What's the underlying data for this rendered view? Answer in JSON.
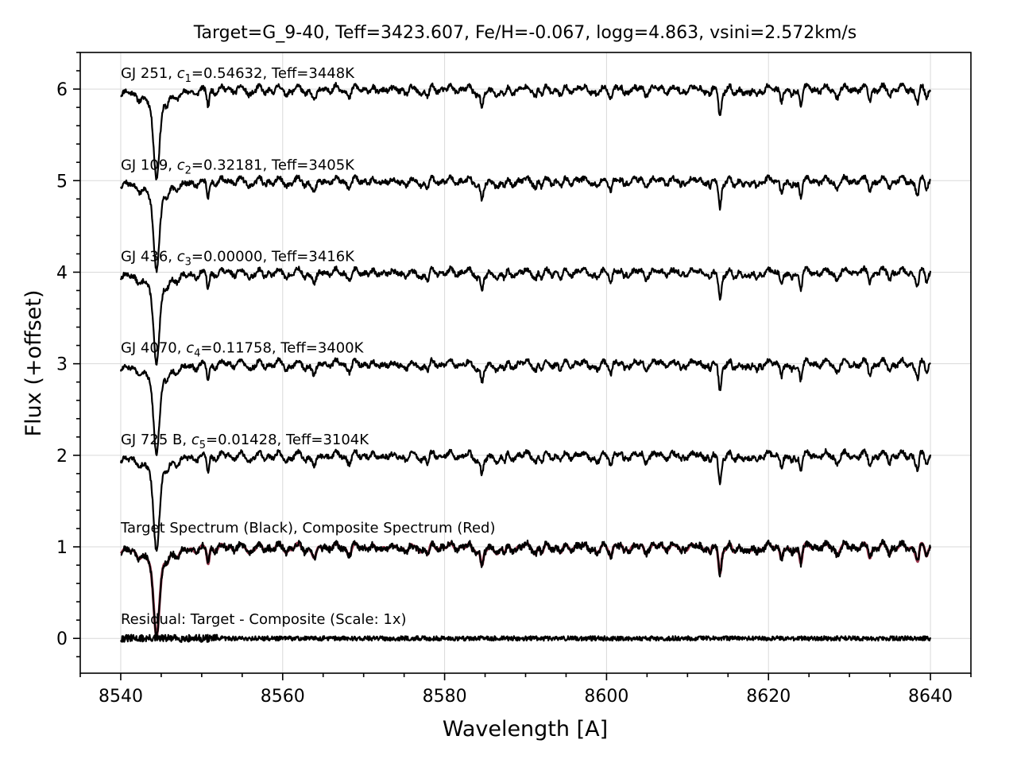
{
  "chart_data": {
    "type": "line",
    "title": "Target=G_9-40, Teff=3423.607, Fe/H=-0.067, logg=4.863, vsini=2.572km/s",
    "xlabel": "Wavelength [A]",
    "ylabel": "Flux (+offset)",
    "xlim": [
      8535,
      8645
    ],
    "ylim": [
      -0.38,
      6.4
    ],
    "xticks": [
      8540,
      8560,
      8580,
      8600,
      8620,
      8640
    ],
    "yticks": [
      0,
      1,
      2,
      3,
      4,
      5,
      6
    ],
    "grid": true,
    "legend": "none",
    "colors": {
      "spectrum": "#000000",
      "composite": "#8b1530",
      "grid": "#d9d9d9"
    },
    "x_range": [
      8540,
      8640
    ],
    "absorption_lines": [
      {
        "center": 8544.4,
        "depth": 0.72,
        "width": 0.35,
        "wing_depth": 0.42,
        "wing_width": 2.2
      },
      {
        "center": 8550.8,
        "depth": 0.18,
        "width": 0.15
      },
      {
        "center": 8562.8,
        "depth": 0.06,
        "width": 0.2
      },
      {
        "center": 8571.5,
        "depth": 0.05,
        "width": 0.2
      },
      {
        "center": 8584.6,
        "depth": 0.2,
        "width": 0.18
      },
      {
        "center": 8592.0,
        "depth": 0.07,
        "width": 0.2
      },
      {
        "center": 8614.0,
        "depth": 0.3,
        "width": 0.18
      },
      {
        "center": 8612.8,
        "depth": 0.1,
        "width": 0.15
      },
      {
        "center": 8621.6,
        "depth": 0.1,
        "width": 0.15
      },
      {
        "center": 8624.0,
        "depth": 0.15,
        "width": 0.15
      },
      {
        "center": 8632.5,
        "depth": 0.08,
        "width": 0.15
      }
    ],
    "series": [
      {
        "offset": 6,
        "label_prefix": "GJ 251, ",
        "coef_sub": "1",
        "label_suffix": "=0.54632, Teff=3448K",
        "core_scale": 1.0,
        "seed": 11
      },
      {
        "offset": 5,
        "label_prefix": "GJ 109, ",
        "coef_sub": "2",
        "label_suffix": "=0.32181, Teff=3405K",
        "core_scale": 1.0,
        "seed": 12
      },
      {
        "offset": 4,
        "label_prefix": "GJ 436, ",
        "coef_sub": "3",
        "label_suffix": "=0.00000, Teff=3416K",
        "core_scale": 1.05,
        "seed": 13
      },
      {
        "offset": 3,
        "label_prefix": "GJ 4070, ",
        "coef_sub": "4",
        "label_suffix": "=0.11758, Teff=3400K",
        "core_scale": 1.0,
        "seed": 14
      },
      {
        "offset": 2,
        "label_prefix": "GJ 725 B, ",
        "coef_sub": "5",
        "label_suffix": "=0.01428, Teff=3104K",
        "core_scale": 1.1,
        "seed": 15
      }
    ],
    "target": {
      "offset": 1,
      "label": "Target Spectrum (Black), Composite Spectrum (Red)",
      "seed": 21
    },
    "residual": {
      "offset": 0,
      "label": "Residual: Target - Composite (Scale: 1x)",
      "noise": 0.025,
      "seed": 31
    }
  }
}
